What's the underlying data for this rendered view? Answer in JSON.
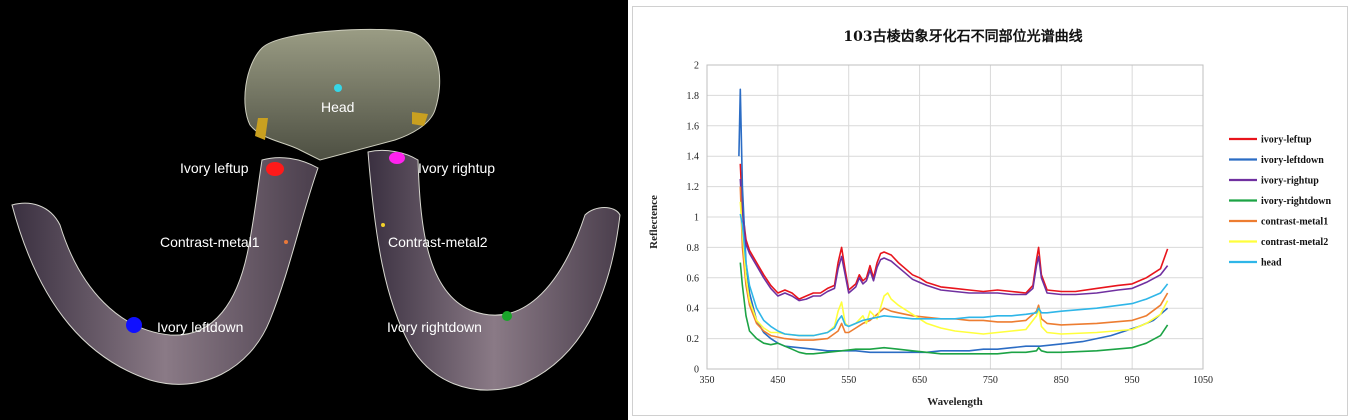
{
  "photo": {
    "labels": [
      {
        "id": "head",
        "text": "Head",
        "color": "#36d6e7"
      },
      {
        "id": "ivory-leftup",
        "text": "Ivory leftup",
        "color": "#ff1a1a"
      },
      {
        "id": "ivory-rightup",
        "text": "Ivory rightup",
        "color": "#ff22ee"
      },
      {
        "id": "contrast-metal1",
        "text": "Contrast-metal1",
        "color": "#e8793a"
      },
      {
        "id": "contrast-metal2",
        "text": "Contrast-metal2",
        "color": "#f2d22a"
      },
      {
        "id": "ivory-leftdown",
        "text": "Ivory leftdown",
        "color": "#1010ff"
      },
      {
        "id": "ivory-rightdown",
        "text": "Ivory rightdown",
        "color": "#1aa52a"
      }
    ]
  },
  "chart_data": {
    "type": "line",
    "title": "103古棱齿象牙化石不同部位光谱曲线",
    "xlabel": "Wavelength",
    "ylabel": "Reflectence",
    "xlim": [
      350,
      1050
    ],
    "ylim": [
      0,
      2
    ],
    "xticks": [
      "350",
      "450",
      "550",
      "650",
      "750",
      "850",
      "950",
      "1050"
    ],
    "yticks": [
      "0",
      "0.2",
      "0.4",
      "0.6",
      "0.8",
      "1",
      "1.2",
      "1.4",
      "1.6",
      "1.8",
      "2"
    ],
    "grid": true,
    "legend_position": "right",
    "series": [
      {
        "name": "ivory-leftup",
        "color": "#e8141c",
        "x": [
          397,
          400,
          405,
          410,
          420,
          430,
          440,
          450,
          460,
          470,
          480,
          490,
          500,
          510,
          520,
          530,
          535,
          540,
          545,
          550,
          560,
          565,
          570,
          575,
          580,
          585,
          590,
          595,
          600,
          610,
          620,
          630,
          640,
          650,
          660,
          680,
          700,
          720,
          740,
          760,
          780,
          800,
          810,
          815,
          818,
          822,
          830,
          850,
          870,
          900,
          930,
          950,
          970,
          990,
          1000
        ],
        "y": [
          1.35,
          1.05,
          0.85,
          0.78,
          0.7,
          0.62,
          0.55,
          0.5,
          0.52,
          0.5,
          0.46,
          0.48,
          0.5,
          0.5,
          0.53,
          0.55,
          0.7,
          0.8,
          0.65,
          0.52,
          0.56,
          0.62,
          0.58,
          0.6,
          0.68,
          0.6,
          0.7,
          0.76,
          0.77,
          0.75,
          0.7,
          0.66,
          0.62,
          0.6,
          0.57,
          0.54,
          0.53,
          0.52,
          0.51,
          0.52,
          0.51,
          0.5,
          0.55,
          0.72,
          0.8,
          0.62,
          0.52,
          0.51,
          0.51,
          0.53,
          0.55,
          0.56,
          0.6,
          0.66,
          0.79
        ]
      },
      {
        "name": "ivory-leftdown",
        "color": "#2b6cc4",
        "x": [
          395,
          397,
          400,
          405,
          410,
          420,
          430,
          440,
          450,
          460,
          480,
          500,
          520,
          540,
          560,
          580,
          600,
          620,
          640,
          660,
          680,
          700,
          720,
          740,
          760,
          780,
          800,
          820,
          840,
          860,
          880,
          900,
          920,
          940,
          960,
          980,
          990,
          1000
        ],
        "y": [
          1.4,
          1.84,
          1.2,
          0.7,
          0.5,
          0.32,
          0.24,
          0.2,
          0.17,
          0.15,
          0.14,
          0.13,
          0.12,
          0.12,
          0.12,
          0.11,
          0.11,
          0.11,
          0.11,
          0.11,
          0.12,
          0.12,
          0.12,
          0.13,
          0.13,
          0.14,
          0.15,
          0.15,
          0.16,
          0.17,
          0.18,
          0.2,
          0.22,
          0.25,
          0.28,
          0.32,
          0.36,
          0.4
        ]
      },
      {
        "name": "ivory-rightup",
        "color": "#7030a0",
        "x": [
          397,
          400,
          405,
          410,
          420,
          430,
          440,
          450,
          460,
          470,
          480,
          490,
          500,
          510,
          520,
          530,
          535,
          540,
          545,
          550,
          560,
          565,
          570,
          575,
          580,
          585,
          590,
          595,
          600,
          610,
          620,
          630,
          640,
          650,
          660,
          680,
          700,
          720,
          740,
          760,
          780,
          800,
          810,
          815,
          818,
          822,
          830,
          850,
          870,
          900,
          930,
          950,
          970,
          990,
          1000
        ],
        "y": [
          1.25,
          1.0,
          0.82,
          0.76,
          0.68,
          0.6,
          0.53,
          0.48,
          0.5,
          0.48,
          0.45,
          0.46,
          0.48,
          0.48,
          0.51,
          0.53,
          0.66,
          0.74,
          0.62,
          0.5,
          0.54,
          0.6,
          0.56,
          0.58,
          0.65,
          0.58,
          0.67,
          0.72,
          0.73,
          0.71,
          0.67,
          0.63,
          0.59,
          0.57,
          0.55,
          0.52,
          0.51,
          0.5,
          0.5,
          0.5,
          0.49,
          0.49,
          0.53,
          0.68,
          0.74,
          0.6,
          0.5,
          0.49,
          0.49,
          0.5,
          0.52,
          0.53,
          0.57,
          0.62,
          0.68
        ]
      },
      {
        "name": "ivory-rightdown",
        "color": "#1ca345",
        "x": [
          397,
          400,
          405,
          410,
          420,
          430,
          440,
          450,
          460,
          470,
          480,
          490,
          500,
          520,
          540,
          560,
          580,
          600,
          620,
          640,
          660,
          680,
          700,
          720,
          740,
          760,
          780,
          800,
          815,
          818,
          822,
          830,
          850,
          900,
          950,
          970,
          990,
          1000
        ],
        "y": [
          0.7,
          0.55,
          0.35,
          0.25,
          0.2,
          0.17,
          0.16,
          0.17,
          0.15,
          0.13,
          0.11,
          0.1,
          0.1,
          0.11,
          0.12,
          0.13,
          0.13,
          0.14,
          0.13,
          0.12,
          0.11,
          0.1,
          0.1,
          0.1,
          0.1,
          0.1,
          0.11,
          0.11,
          0.12,
          0.14,
          0.12,
          0.11,
          0.11,
          0.12,
          0.14,
          0.17,
          0.22,
          0.29
        ]
      },
      {
        "name": "contrast-metal1",
        "color": "#ed7d31",
        "x": [
          397,
          400,
          405,
          410,
          420,
          430,
          440,
          450,
          460,
          480,
          500,
          520,
          535,
          540,
          545,
          550,
          560,
          570,
          580,
          590,
          600,
          610,
          620,
          640,
          660,
          680,
          700,
          720,
          740,
          760,
          780,
          800,
          815,
          818,
          822,
          830,
          850,
          900,
          950,
          970,
          990,
          1000
        ],
        "y": [
          1.2,
          0.8,
          0.55,
          0.42,
          0.3,
          0.25,
          0.22,
          0.21,
          0.2,
          0.19,
          0.19,
          0.2,
          0.25,
          0.3,
          0.24,
          0.24,
          0.27,
          0.3,
          0.32,
          0.36,
          0.4,
          0.38,
          0.37,
          0.35,
          0.34,
          0.33,
          0.33,
          0.32,
          0.32,
          0.31,
          0.31,
          0.32,
          0.38,
          0.42,
          0.33,
          0.3,
          0.29,
          0.3,
          0.32,
          0.35,
          0.42,
          0.5
        ]
      },
      {
        "name": "contrast-metal2",
        "color": "#ffff3c",
        "x": [
          397,
          400,
          405,
          410,
          420,
          430,
          440,
          450,
          460,
          480,
          500,
          520,
          530,
          535,
          540,
          545,
          550,
          560,
          570,
          575,
          580,
          590,
          600,
          605,
          610,
          620,
          640,
          660,
          680,
          700,
          720,
          740,
          760,
          780,
          800,
          815,
          818,
          822,
          830,
          850,
          900,
          950,
          970,
          990,
          1000
        ],
        "y": [
          1.1,
          0.9,
          0.6,
          0.45,
          0.32,
          0.27,
          0.24,
          0.24,
          0.23,
          0.22,
          0.22,
          0.24,
          0.28,
          0.38,
          0.44,
          0.3,
          0.28,
          0.3,
          0.35,
          0.3,
          0.38,
          0.33,
          0.48,
          0.5,
          0.46,
          0.42,
          0.36,
          0.3,
          0.27,
          0.25,
          0.24,
          0.23,
          0.24,
          0.25,
          0.26,
          0.35,
          0.4,
          0.28,
          0.24,
          0.23,
          0.24,
          0.26,
          0.3,
          0.36,
          0.45
        ]
      },
      {
        "name": "head",
        "color": "#2fb6e8",
        "x": [
          397,
          400,
          405,
          410,
          420,
          430,
          440,
          450,
          460,
          480,
          500,
          520,
          530,
          535,
          540,
          545,
          550,
          560,
          570,
          580,
          590,
          600,
          620,
          640,
          660,
          680,
          700,
          720,
          740,
          760,
          780,
          800,
          815,
          818,
          822,
          830,
          850,
          900,
          950,
          970,
          990,
          1000
        ],
        "y": [
          1.02,
          0.95,
          0.7,
          0.55,
          0.4,
          0.32,
          0.28,
          0.25,
          0.23,
          0.22,
          0.22,
          0.24,
          0.27,
          0.32,
          0.35,
          0.29,
          0.28,
          0.3,
          0.32,
          0.33,
          0.34,
          0.35,
          0.34,
          0.33,
          0.33,
          0.33,
          0.33,
          0.34,
          0.34,
          0.35,
          0.35,
          0.36,
          0.37,
          0.4,
          0.37,
          0.37,
          0.38,
          0.4,
          0.43,
          0.46,
          0.5,
          0.56
        ]
      }
    ]
  }
}
